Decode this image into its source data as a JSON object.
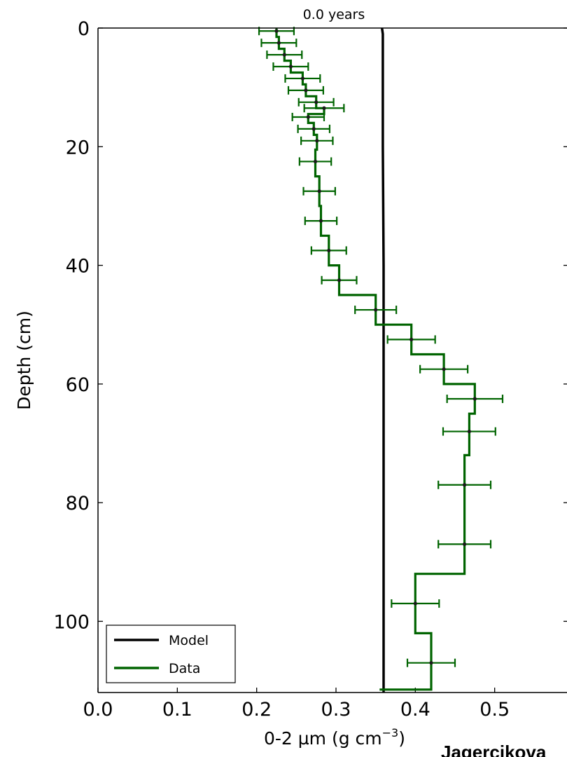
{
  "chart_data": {
    "type": "line",
    "title": "0.0 years",
    "xlabel": "0-2 µm  (g cm",
    "xlabel_exponent": "−3",
    "xlabel_close": ")",
    "ylabel": "Depth (cm)",
    "xlim": [
      0.0,
      0.6
    ],
    "ylim": [
      112,
      0
    ],
    "y_inverted": true,
    "x_ticks": [
      "0.0",
      "0.1",
      "0.2",
      "0.3",
      "0.4",
      "0.5"
    ],
    "x_tick_values": [
      0.0,
      0.1,
      0.2,
      0.3,
      0.4,
      0.5
    ],
    "y_ticks": [
      "0",
      "20",
      "40",
      "60",
      "80",
      "100"
    ],
    "y_tick_values": [
      0,
      20,
      40,
      60,
      80,
      100
    ],
    "grid": false,
    "legend": {
      "position": "lower-left",
      "entries": [
        "Model",
        "Data"
      ]
    },
    "colors": {
      "Model": "#000000",
      "Data": "#006400"
    },
    "series": [
      {
        "name": "Model",
        "color": "#000000",
        "x": [
          0.358,
          0.359,
          0.359,
          0.36,
          0.36
        ],
        "y": [
          0,
          1,
          20,
          40,
          112
        ]
      },
      {
        "name": "Data",
        "color": "#006400",
        "step_boundaries": [
          0,
          1.5,
          3.5,
          5.5,
          7.5,
          9.5,
          11.5,
          13.5,
          14.5,
          16.0,
          18.0,
          20.5,
          25.0,
          30.0,
          35.0,
          40.0,
          45.0,
          50.0,
          55.0,
          60.0,
          65.0,
          72.0,
          92.0,
          102.0,
          111.5
        ],
        "values": [
          0.225,
          0.228,
          0.235,
          0.243,
          0.258,
          0.262,
          0.275,
          0.285,
          0.265,
          0.272,
          0.276,
          0.274,
          0.279,
          0.281,
          0.291,
          0.304,
          0.35,
          0.395,
          0.436,
          0.475,
          0.468,
          0.462,
          0.4,
          0.42
        ],
        "points": {
          "depth": [
            0.5,
            2.5,
            4.5,
            6.5,
            8.5,
            10.5,
            12.5,
            13.5,
            15.0,
            17.0,
            19.0,
            22.5,
            27.5,
            32.5,
            37.5,
            42.5,
            47.5,
            52.5,
            57.5,
            62.5,
            68.0,
            77.0,
            87.0,
            97.0,
            107.0
          ],
          "value": [
            0.225,
            0.228,
            0.235,
            0.243,
            0.258,
            0.262,
            0.275,
            0.285,
            0.265,
            0.272,
            0.276,
            0.274,
            0.279,
            0.281,
            0.291,
            0.304,
            0.35,
            0.395,
            0.436,
            0.475,
            0.468,
            0.462,
            0.462,
            0.4,
            0.42
          ],
          "xerr": [
            0.022,
            0.022,
            0.022,
            0.022,
            0.022,
            0.022,
            0.022,
            0.025,
            0.02,
            0.02,
            0.02,
            0.02,
            0.02,
            0.02,
            0.022,
            0.022,
            0.026,
            0.03,
            0.03,
            0.035,
            0.033,
            0.033,
            0.033,
            0.03,
            0.03
          ]
        }
      }
    ]
  },
  "watermark": {
    "text": "Jagercikova"
  }
}
